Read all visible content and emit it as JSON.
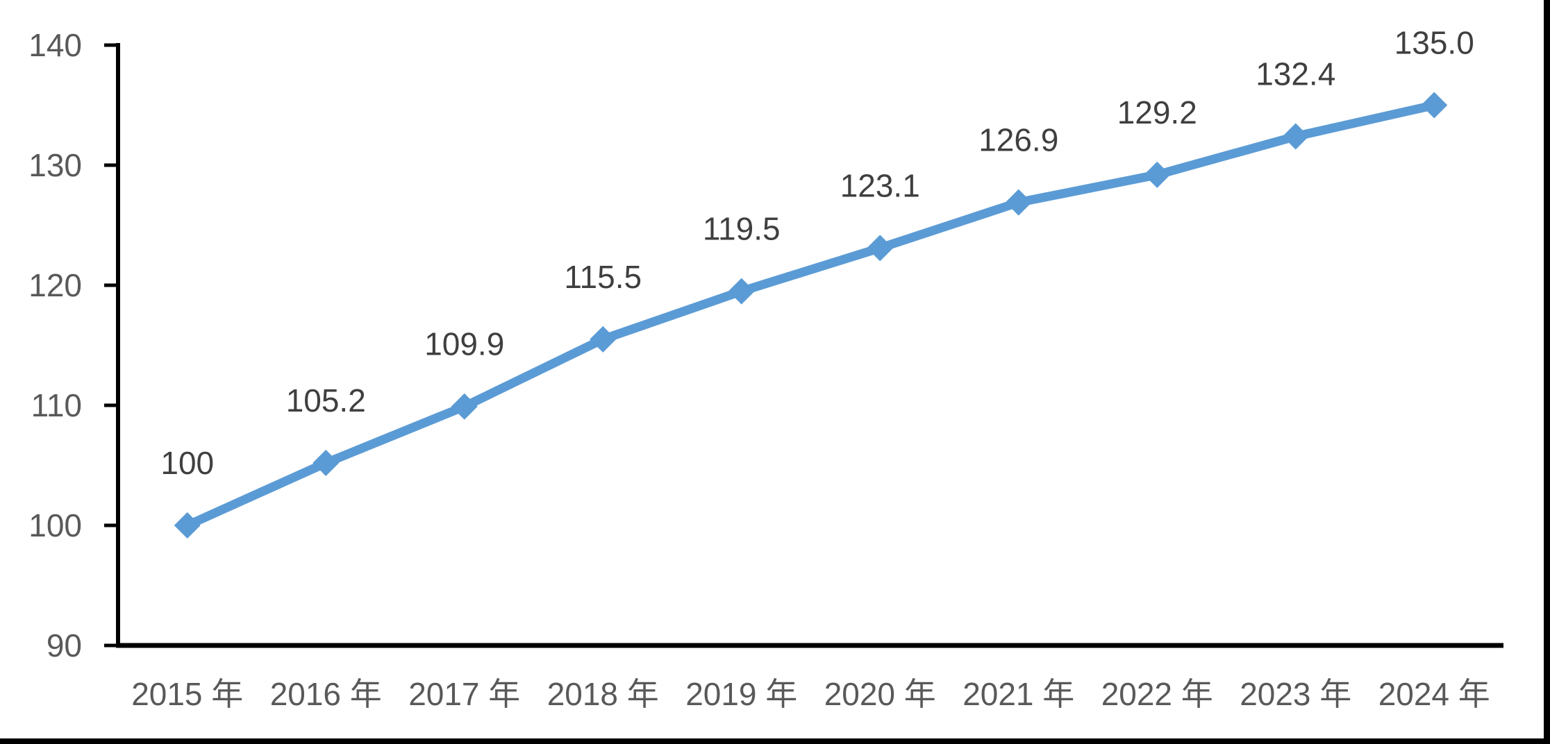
{
  "chart_data": {
    "type": "line",
    "title": "",
    "xlabel": "",
    "ylabel": "",
    "categories": [
      "2015 年",
      "2016 年",
      "2017 年",
      "2018 年",
      "2019 年",
      "2020 年",
      "2021 年",
      "2022 年",
      "2023 年",
      "2024 年"
    ],
    "series": [
      {
        "name": "index",
        "values": [
          100,
          105.2,
          109.9,
          115.5,
          119.5,
          123.1,
          126.9,
          129.2,
          132.4,
          135.0
        ],
        "data_labels": [
          "100",
          "105.2",
          "109.9",
          "115.5",
          "119.5",
          "123.1",
          "126.9",
          "129.2",
          "132.4",
          "135.0"
        ]
      }
    ],
    "ylim": [
      90,
      140
    ],
    "yticks": [
      90,
      100,
      110,
      120,
      130,
      140
    ],
    "ytick_labels": [
      "90",
      "100",
      "110",
      "120",
      "130",
      "140"
    ],
    "grid": false,
    "legend_position": "none",
    "marker": "diamond",
    "data_label_position": "above",
    "colors": {
      "line": "#5B9BD5",
      "marker": "#5B9BD5",
      "data_label": "#3F3F3F",
      "tick_label": "#595959",
      "axis_line": "#000000",
      "background": "#FFFFFF",
      "page_border": "#000000"
    }
  }
}
